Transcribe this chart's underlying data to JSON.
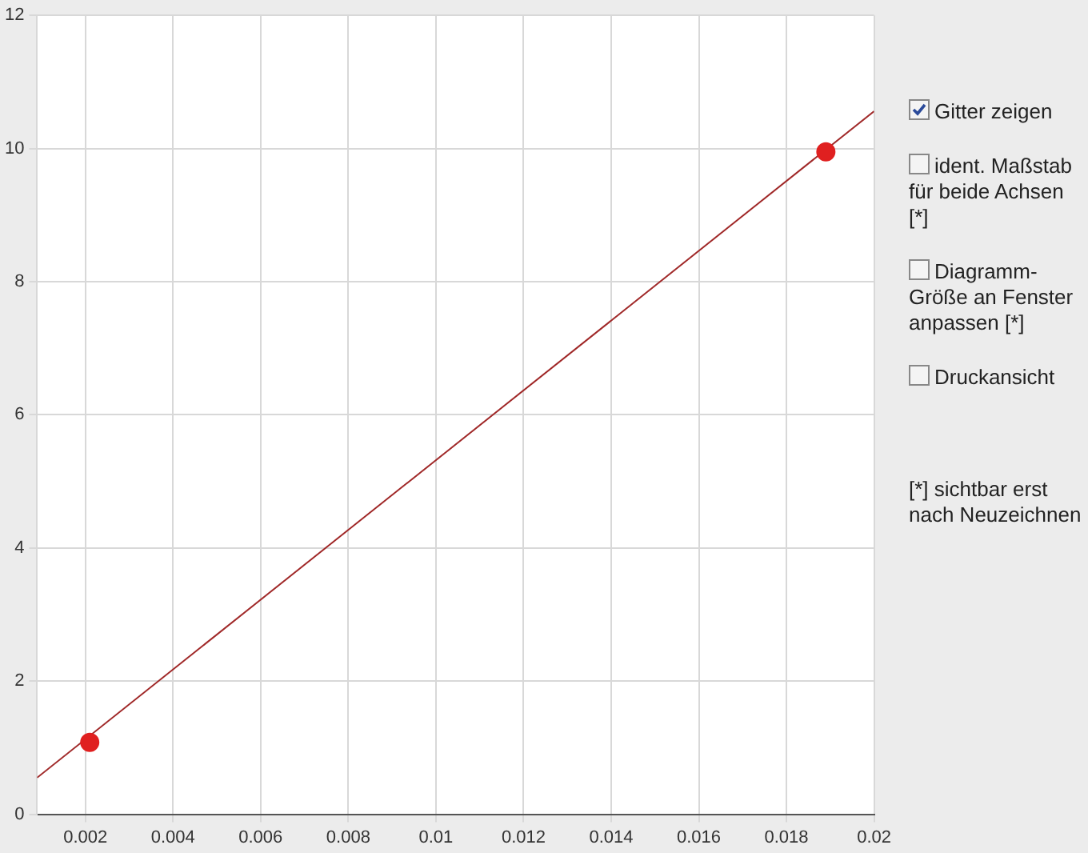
{
  "chart_data": {
    "type": "scatter",
    "series": [
      {
        "color": "#e02020",
        "marker": "circle",
        "x": [
          0.0021,
          0.0189
        ],
        "values": [
          1.08,
          9.95
        ]
      },
      {
        "type": "line",
        "color": "#a02828",
        "marker": "none",
        "x": [
          0.0009,
          0.02
        ],
        "values": [
          0.55,
          10.56
        ]
      }
    ],
    "xlim": [
      0.0009,
      0.02
    ],
    "xticks": [
      0.002,
      0.004,
      0.006,
      0.008,
      0.01,
      0.012,
      0.014,
      0.016,
      0.018,
      0.02
    ],
    "ylim": [
      0,
      12
    ],
    "yticks": [
      0,
      2,
      4,
      6,
      8,
      10,
      12
    ],
    "grid": true,
    "legend": false,
    "annotations": [
      "Gitter zeigen",
      "ident. Maßstab für beide Achsen [*]",
      "Diagramm-Größe an Fenster anpassen [*]",
      "Druckansicht",
      "[*] sichtbar erst nach Neuzeichnen"
    ]
  }
}
